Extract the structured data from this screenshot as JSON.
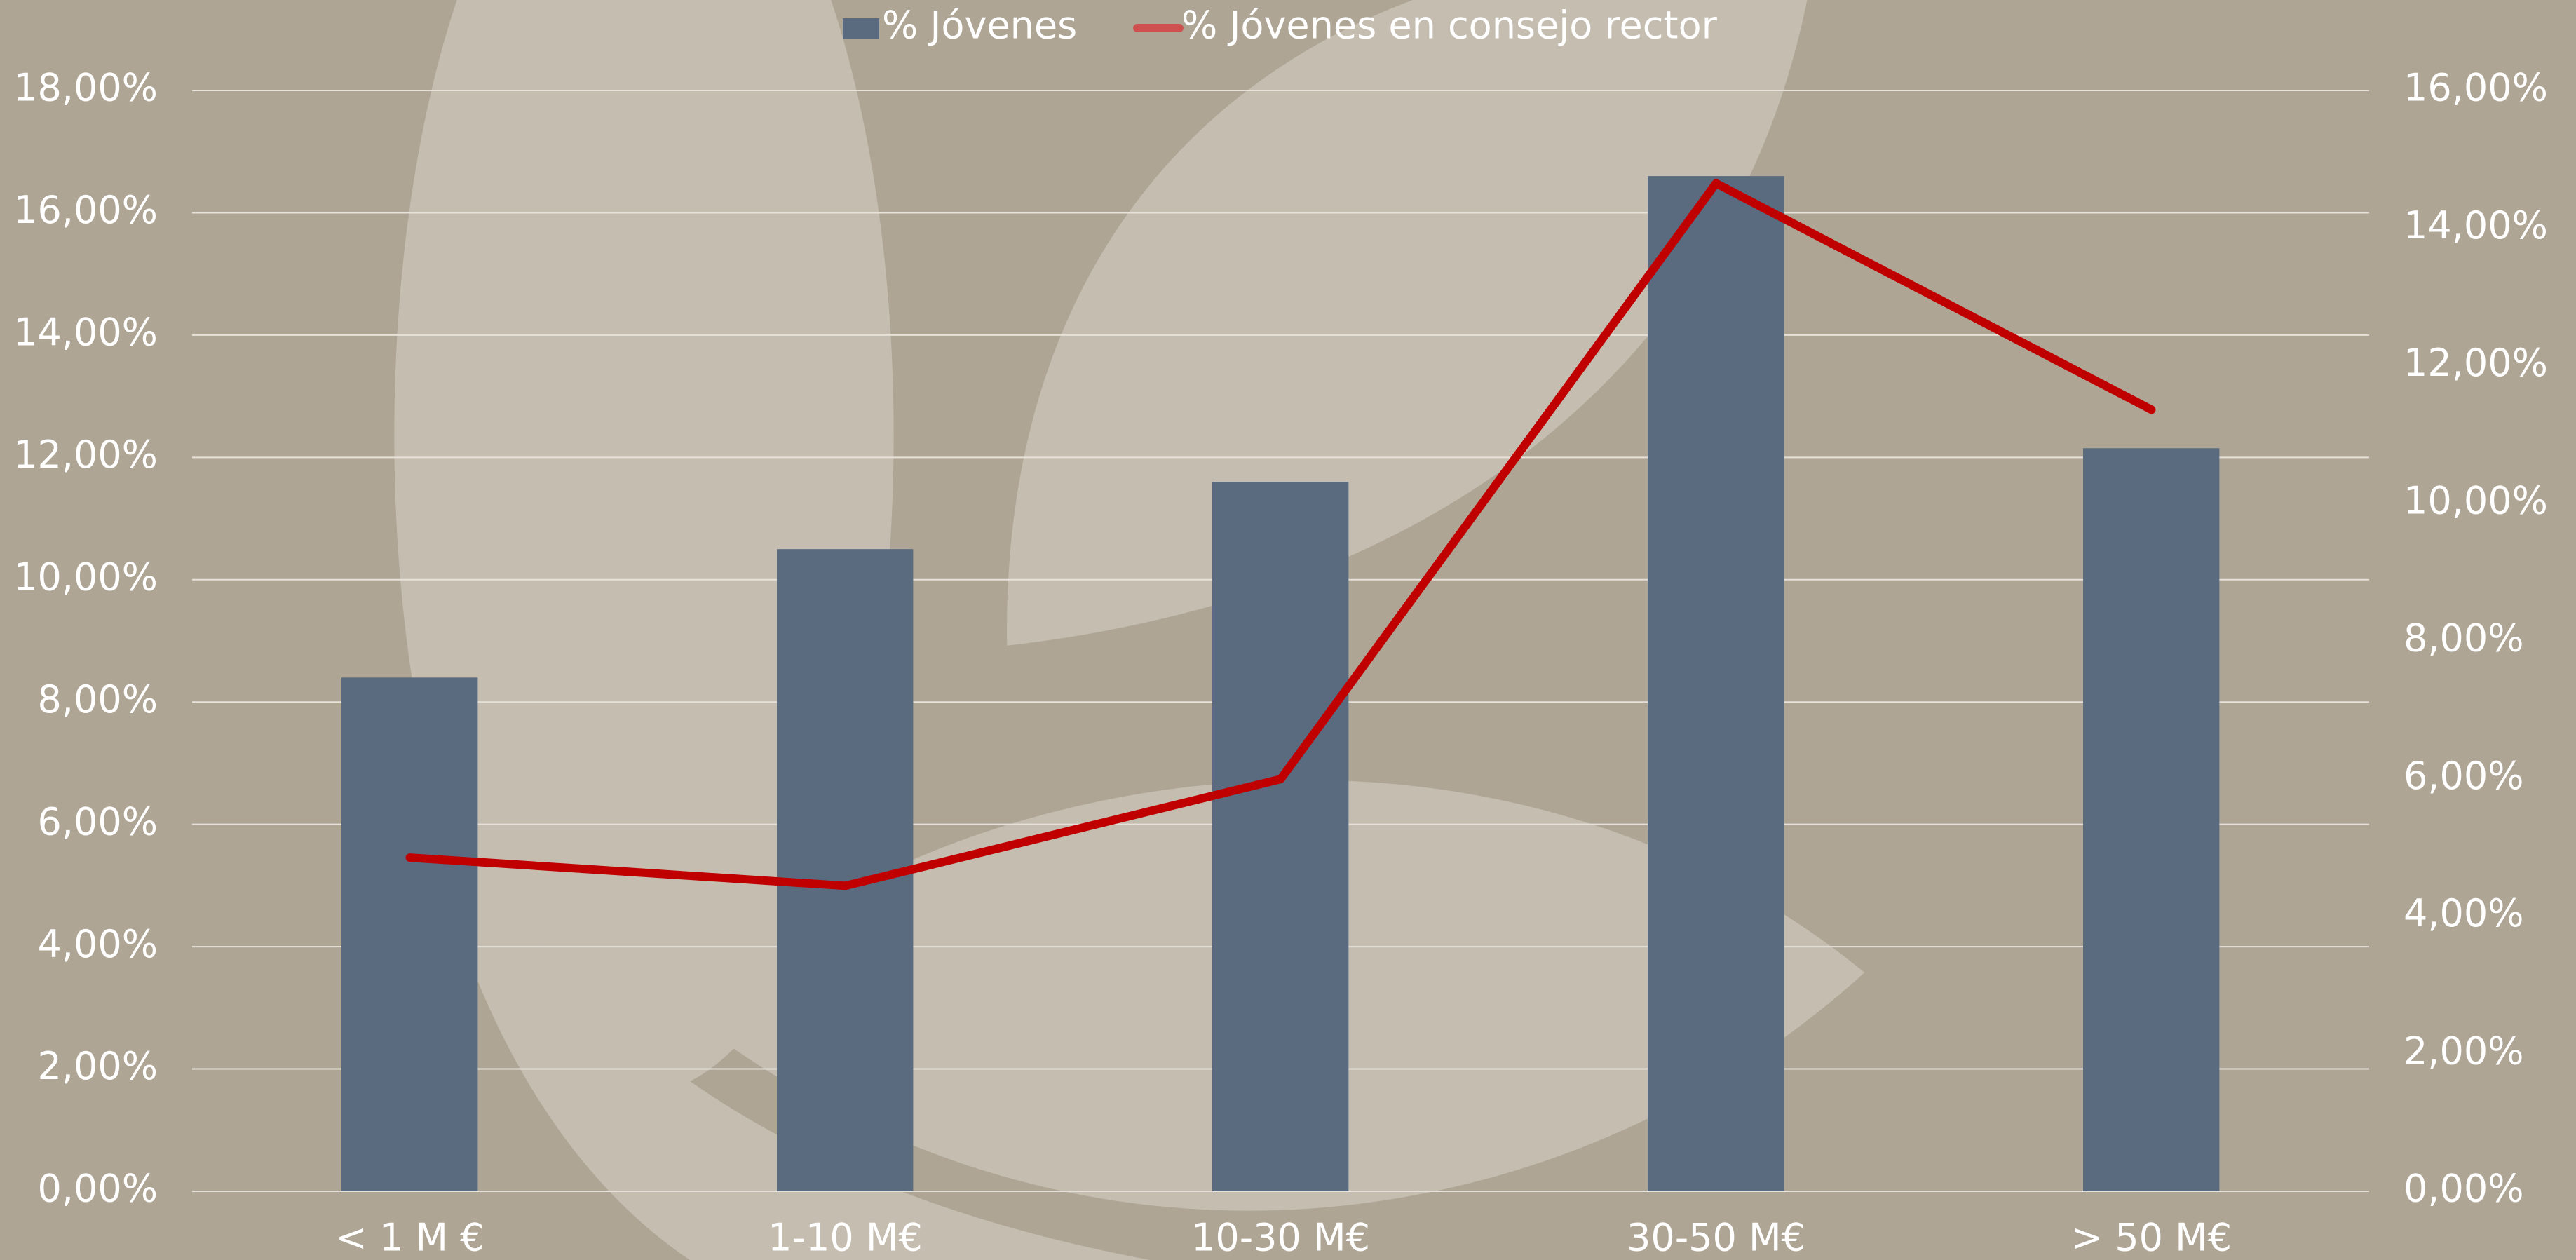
{
  "chart_data": {
    "type": "bar_line",
    "categories": [
      "< 1 M €",
      "1-10 M€",
      "10-30 M€",
      "30-50 M€",
      "> 50 M€"
    ],
    "series": [
      {
        "name": "% Jóvenes",
        "type": "bar",
        "color": "#5a6b7f",
        "values": [
          8.4,
          10.5,
          11.6,
          16.6,
          12.15
        ]
      },
      {
        "name": "% Jóvenes en consejo rector",
        "type": "line",
        "axis": "y2",
        "color": "#c00000",
        "values": [
          4.85,
          4.44,
          5.99,
          14.65,
          11.36
        ]
      }
    ],
    "ylim": [
      0,
      18
    ],
    "yticks": [
      {
        "value": 0,
        "label": "0,00%"
      },
      {
        "value": 2,
        "label": "2,00%"
      },
      {
        "value": 4,
        "label": "4,00%"
      },
      {
        "value": 6,
        "label": "6,00%"
      },
      {
        "value": 8,
        "label": "8,00%"
      },
      {
        "value": 10,
        "label": "10,00%"
      },
      {
        "value": 12,
        "label": "12,00%"
      },
      {
        "value": 14,
        "label": "14,00%"
      },
      {
        "value": 16,
        "label": "16,00%"
      },
      {
        "value": 18,
        "label": "18,00%"
      }
    ],
    "y2lim": [
      0,
      16
    ],
    "y2ticks": [
      {
        "value": 0,
        "label": "0,00%"
      },
      {
        "value": 2,
        "label": "2,00%"
      },
      {
        "value": 4,
        "label": "4,00%"
      },
      {
        "value": 6,
        "label": "6,00%"
      },
      {
        "value": 8,
        "label": "8,00%"
      },
      {
        "value": 10,
        "label": "10,00%"
      },
      {
        "value": 12,
        "label": "12,00%"
      },
      {
        "value": 14,
        "label": "14,00%"
      },
      {
        "value": 16,
        "label": "16,00%"
      }
    ],
    "grid": true,
    "legend": "top"
  }
}
